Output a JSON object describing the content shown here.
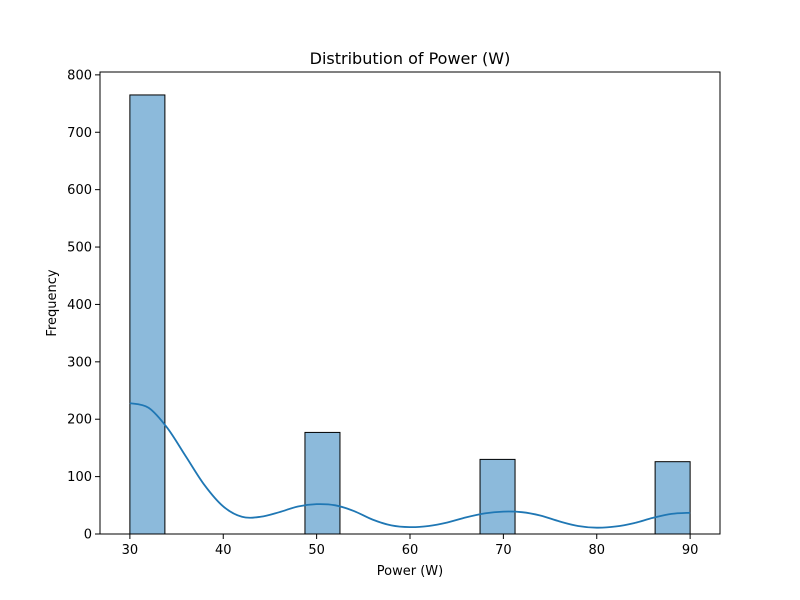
{
  "chart_data": {
    "type": "bar",
    "title": "Distribution of Power (W)",
    "xlabel": "Power (W)",
    "ylabel": "Frequency",
    "xlim": [
      26.8,
      93.2
    ],
    "ylim": [
      0,
      805
    ],
    "xticks": [
      30,
      40,
      50,
      60,
      70,
      80,
      90
    ],
    "yticks": [
      0,
      100,
      200,
      300,
      400,
      500,
      600,
      700,
      800
    ],
    "bin_width": 3.75,
    "bins": [
      {
        "start": 30.0,
        "end": 33.75,
        "count": 765
      },
      {
        "start": 33.75,
        "end": 37.5,
        "count": 0
      },
      {
        "start": 37.5,
        "end": 41.25,
        "count": 0
      },
      {
        "start": 41.25,
        "end": 45.0,
        "count": 0
      },
      {
        "start": 45.0,
        "end": 48.75,
        "count": 0
      },
      {
        "start": 48.75,
        "end": 52.5,
        "count": 177
      },
      {
        "start": 52.5,
        "end": 56.25,
        "count": 0
      },
      {
        "start": 56.25,
        "end": 60.0,
        "count": 0
      },
      {
        "start": 60.0,
        "end": 63.75,
        "count": 0
      },
      {
        "start": 63.75,
        "end": 67.5,
        "count": 0
      },
      {
        "start": 67.5,
        "end": 71.25,
        "count": 130
      },
      {
        "start": 71.25,
        "end": 75.0,
        "count": 0
      },
      {
        "start": 75.0,
        "end": 78.75,
        "count": 0
      },
      {
        "start": 78.75,
        "end": 82.5,
        "count": 0
      },
      {
        "start": 82.5,
        "end": 86.25,
        "count": 0
      },
      {
        "start": 86.25,
        "end": 90.0,
        "count": 126
      }
    ],
    "kde_curve": {
      "x": [
        30,
        32,
        34,
        36,
        38,
        40,
        42,
        44,
        46,
        48,
        50,
        52,
        54,
        56,
        58,
        60,
        62,
        64,
        66,
        68,
        70,
        72,
        74,
        76,
        78,
        80,
        82,
        84,
        86,
        88,
        90
      ],
      "y": [
        228,
        220,
        185,
        135,
        85,
        48,
        30,
        30,
        38,
        48,
        52,
        50,
        40,
        25,
        15,
        12,
        14,
        20,
        29,
        36,
        39,
        38,
        32,
        22,
        14,
        11,
        13,
        19,
        28,
        35,
        37
      ]
    },
    "colors": {
      "bar_fill": "#8cbadb",
      "bar_edge": "#000000",
      "kde_line": "#1f77b4"
    },
    "grid": false,
    "legend": "none"
  }
}
